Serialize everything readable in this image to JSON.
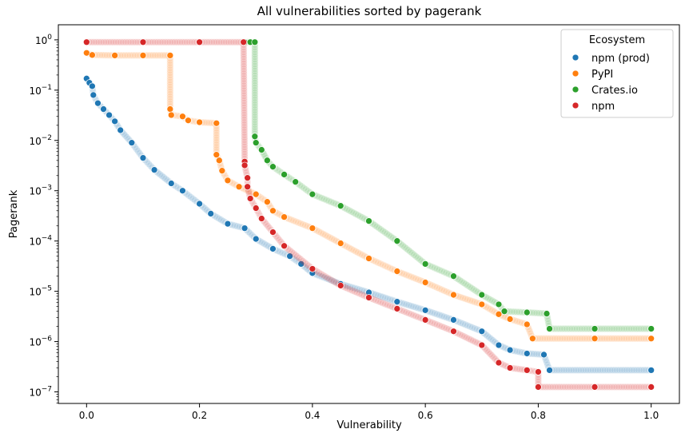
{
  "chart_data": {
    "type": "scatter",
    "title": "All vulnerabilities sorted by pagerank",
    "xlabel": "Vulnerability",
    "ylabel": "Pagerank",
    "y_scale": "log",
    "xlim": [
      -0.05,
      1.05
    ],
    "ylim_log10": [
      -7.23,
      0.3
    ],
    "x_ticks": [
      {
        "value": 0.0,
        "label": "0.0"
      },
      {
        "value": 0.2,
        "label": "0.2"
      },
      {
        "value": 0.4,
        "label": "0.4"
      },
      {
        "value": 0.6,
        "label": "0.6"
      },
      {
        "value": 0.8,
        "label": "0.8"
      },
      {
        "value": 1.0,
        "label": "1.0"
      }
    ],
    "y_ticks": [
      {
        "exp": 0,
        "base": "10",
        "sup": "0"
      },
      {
        "exp": -1,
        "base": "10",
        "sup": "−1"
      },
      {
        "exp": -2,
        "base": "10",
        "sup": "−2"
      },
      {
        "exp": -3,
        "base": "10",
        "sup": "−3"
      },
      {
        "exp": -4,
        "base": "10",
        "sup": "−4"
      },
      {
        "exp": -5,
        "base": "10",
        "sup": "−5"
      },
      {
        "exp": -6,
        "base": "10",
        "sup": "−6"
      },
      {
        "exp": -7,
        "base": "10",
        "sup": "−7"
      }
    ],
    "grid": false,
    "legend": {
      "title": "Ecosystem",
      "placement": "top-right"
    },
    "series": [
      {
        "name": "npm (prod)",
        "color": "#1f77b4",
        "points": [
          [
            0.0,
            0.17
          ],
          [
            0.005,
            0.14
          ],
          [
            0.01,
            0.12
          ],
          [
            0.012,
            0.08
          ],
          [
            0.02,
            0.055
          ],
          [
            0.03,
            0.042
          ],
          [
            0.04,
            0.032
          ],
          [
            0.05,
            0.024
          ],
          [
            0.06,
            0.016
          ],
          [
            0.08,
            0.009
          ],
          [
            0.1,
            0.0045
          ],
          [
            0.12,
            0.0026
          ],
          [
            0.15,
            0.0014
          ],
          [
            0.17,
            0.001
          ],
          [
            0.2,
            0.00055
          ],
          [
            0.22,
            0.00035
          ],
          [
            0.25,
            0.00022
          ],
          [
            0.28,
            0.00018
          ],
          [
            0.3,
            0.00011
          ],
          [
            0.33,
            7e-05
          ],
          [
            0.36,
            5e-05
          ],
          [
            0.38,
            3.5e-05
          ],
          [
            0.4,
            2.3e-05
          ],
          [
            0.45,
            1.4e-05
          ],
          [
            0.5,
            9.5e-06
          ],
          [
            0.55,
            6.2e-06
          ],
          [
            0.6,
            4.2e-06
          ],
          [
            0.65,
            2.7e-06
          ],
          [
            0.7,
            1.6e-06
          ],
          [
            0.73,
            8.5e-07
          ],
          [
            0.75,
            6.8e-07
          ],
          [
            0.78,
            5.8e-07
          ],
          [
            0.81,
            5.5e-07
          ],
          [
            0.82,
            2.7e-07
          ],
          [
            1.0,
            2.7e-07
          ]
        ]
      },
      {
        "name": "PyPI",
        "color": "#ff7f0e",
        "points": [
          [
            0.0,
            0.55
          ],
          [
            0.01,
            0.5
          ],
          [
            0.05,
            0.49
          ],
          [
            0.1,
            0.49
          ],
          [
            0.148,
            0.49
          ],
          [
            0.148,
            0.042
          ],
          [
            0.15,
            0.032
          ],
          [
            0.17,
            0.03
          ],
          [
            0.18,
            0.025
          ],
          [
            0.2,
            0.023
          ],
          [
            0.23,
            0.022
          ],
          [
            0.23,
            0.0052
          ],
          [
            0.235,
            0.004
          ],
          [
            0.24,
            0.0025
          ],
          [
            0.25,
            0.0016
          ],
          [
            0.27,
            0.0012
          ],
          [
            0.3,
            0.00085
          ],
          [
            0.32,
            0.0006
          ],
          [
            0.33,
            0.0004
          ],
          [
            0.35,
            0.0003
          ],
          [
            0.4,
            0.00018
          ],
          [
            0.45,
            9e-05
          ],
          [
            0.5,
            4.5e-05
          ],
          [
            0.55,
            2.5e-05
          ],
          [
            0.6,
            1.5e-05
          ],
          [
            0.65,
            8.5e-06
          ],
          [
            0.7,
            5.5e-06
          ],
          [
            0.73,
            3.5e-06
          ],
          [
            0.75,
            2.8e-06
          ],
          [
            0.78,
            2.2e-06
          ],
          [
            0.79,
            1.15e-06
          ],
          [
            0.9,
            1.15e-06
          ],
          [
            1.0,
            1.15e-06
          ]
        ]
      },
      {
        "name": "Crates.io",
        "color": "#2ca02c",
        "points": [
          [
            0.28,
            0.9
          ],
          [
            0.29,
            0.9
          ],
          [
            0.298,
            0.9
          ],
          [
            0.298,
            0.012
          ],
          [
            0.3,
            0.009
          ],
          [
            0.31,
            0.0065
          ],
          [
            0.32,
            0.004
          ],
          [
            0.33,
            0.003
          ],
          [
            0.35,
            0.0021
          ],
          [
            0.37,
            0.0015
          ],
          [
            0.4,
            0.00085
          ],
          [
            0.45,
            0.0005
          ],
          [
            0.5,
            0.00025
          ],
          [
            0.55,
            0.0001
          ],
          [
            0.6,
            3.5e-05
          ],
          [
            0.65,
            2e-05
          ],
          [
            0.7,
            8.5e-06
          ],
          [
            0.73,
            5.5e-06
          ],
          [
            0.74,
            4e-06
          ],
          [
            0.78,
            3.8e-06
          ],
          [
            0.815,
            3.6e-06
          ],
          [
            0.82,
            1.8e-06
          ],
          [
            0.9,
            1.8e-06
          ],
          [
            1.0,
            1.8e-06
          ]
        ]
      },
      {
        "name": "npm",
        "color": "#d62728",
        "points": [
          [
            0.0,
            0.9
          ],
          [
            0.1,
            0.9
          ],
          [
            0.2,
            0.9
          ],
          [
            0.278,
            0.9
          ],
          [
            0.28,
            0.0038
          ],
          [
            0.28,
            0.0032
          ],
          [
            0.285,
            0.0018
          ],
          [
            0.285,
            0.0012
          ],
          [
            0.29,
            0.0007
          ],
          [
            0.3,
            0.00045
          ],
          [
            0.31,
            0.00028
          ],
          [
            0.33,
            0.00015
          ],
          [
            0.35,
            8e-05
          ],
          [
            0.4,
            2.8e-05
          ],
          [
            0.45,
            1.3e-05
          ],
          [
            0.5,
            7.5e-06
          ],
          [
            0.55,
            4.5e-06
          ],
          [
            0.6,
            2.7e-06
          ],
          [
            0.65,
            1.6e-06
          ],
          [
            0.7,
            8.5e-07
          ],
          [
            0.73,
            3.8e-07
          ],
          [
            0.75,
            3e-07
          ],
          [
            0.78,
            2.7e-07
          ],
          [
            0.8,
            2.5e-07
          ],
          [
            0.8,
            1.25e-07
          ],
          [
            0.9,
            1.25e-07
          ],
          [
            1.0,
            1.25e-07
          ]
        ]
      }
    ]
  }
}
